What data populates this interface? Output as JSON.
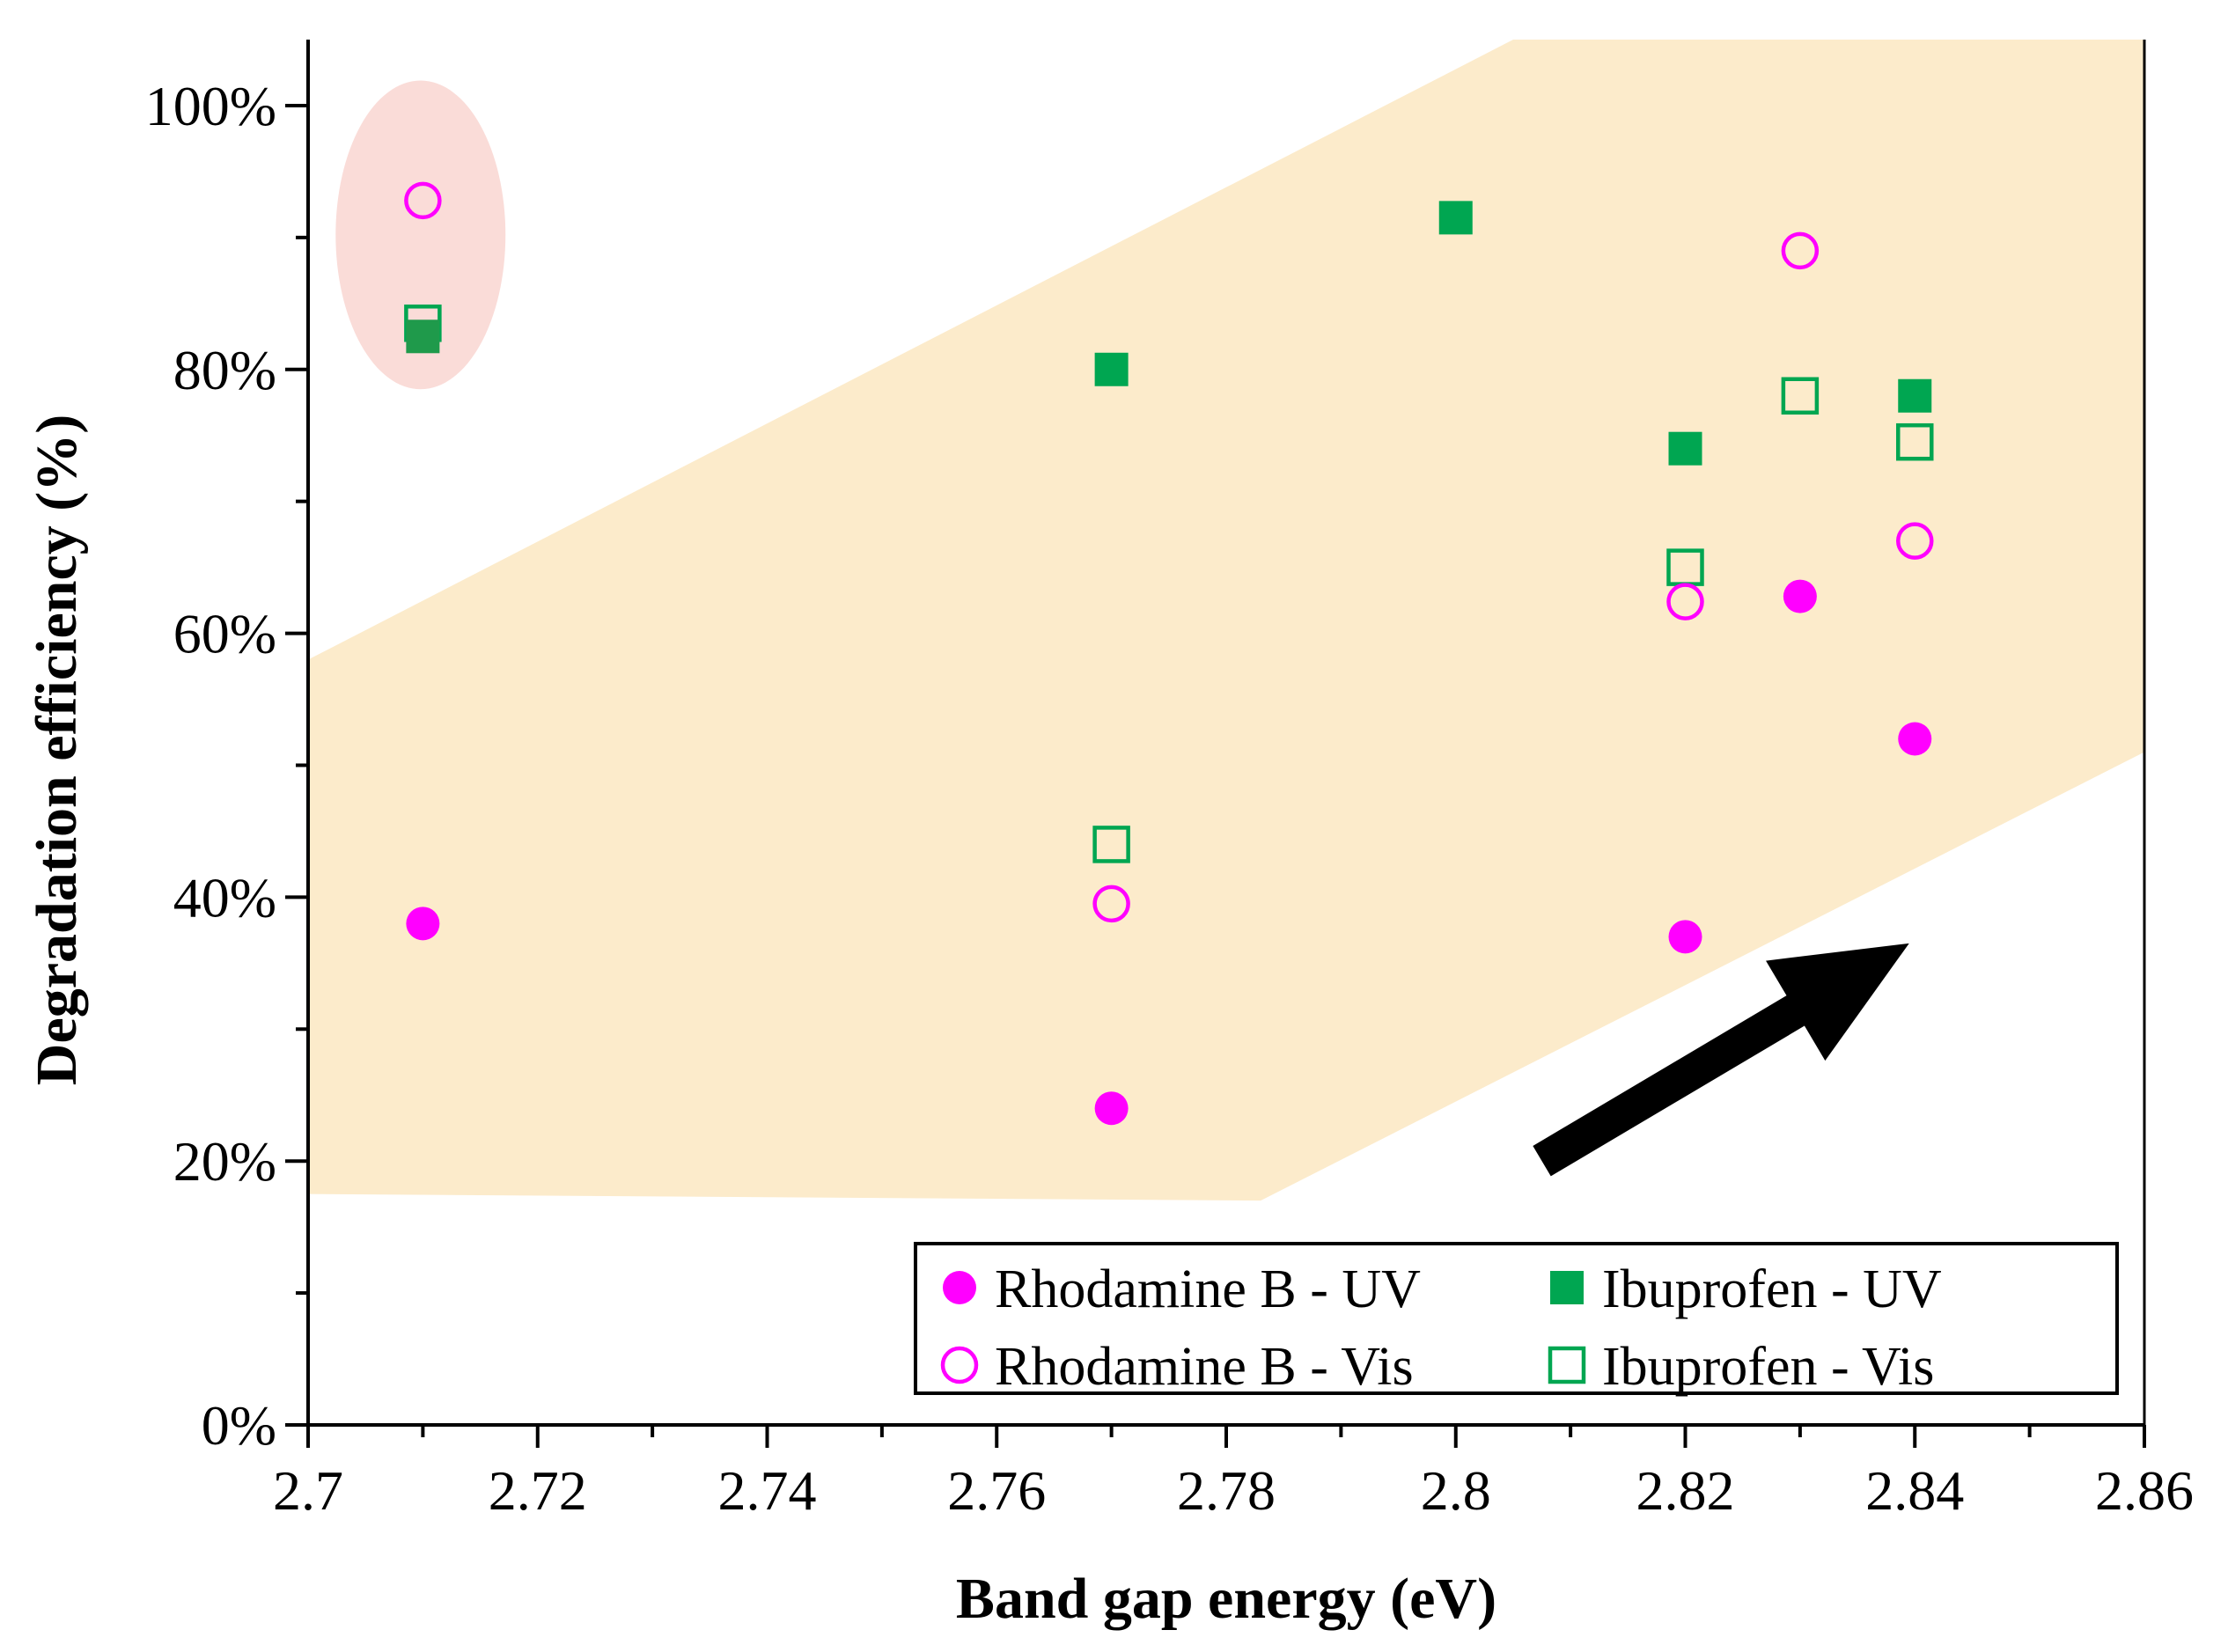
{
  "chart_data": {
    "type": "scatter",
    "title": "",
    "xlabel": "Band gap energy (eV)",
    "ylabel": "Degradation efficiency (%)",
    "xlim": [
      2.7,
      2.86
    ],
    "ylim": [
      0,
      105
    ],
    "x_ticks": [
      2.7,
      2.72,
      2.74,
      2.76,
      2.78,
      2.8,
      2.82,
      2.84,
      2.86
    ],
    "x_tick_labels": [
      "2.7",
      "2.72",
      "2.74",
      "2.76",
      "2.78",
      "2.8",
      "2.82",
      "2.84",
      "2.86"
    ],
    "y_ticks": [
      0,
      20,
      40,
      60,
      80,
      100
    ],
    "y_tick_labels": [
      "0%",
      "20%",
      "40%",
      "60%",
      "80%",
      "100%"
    ],
    "grid": false,
    "legend_position": "bottom-right",
    "series": [
      {
        "name": "Rhodamine B - UV",
        "marker": "filled-circle",
        "color": "#FF00FF",
        "points": [
          [
            2.71,
            38
          ],
          [
            2.77,
            24
          ],
          [
            2.82,
            37
          ],
          [
            2.83,
            62.8
          ],
          [
            2.84,
            52
          ]
        ]
      },
      {
        "name": "Rhodamine B - Vis",
        "marker": "open-circle",
        "color": "#FF00FF",
        "points": [
          [
            2.71,
            92.8
          ],
          [
            2.77,
            39.5
          ],
          [
            2.82,
            62.4
          ],
          [
            2.83,
            89
          ],
          [
            2.84,
            67
          ]
        ]
      },
      {
        "name": "Ibuprofen - UV",
        "marker": "filled-square",
        "color": "#00A651",
        "points": [
          [
            2.71,
            82.5
          ],
          [
            2.77,
            80
          ],
          [
            2.8,
            91.5
          ],
          [
            2.82,
            74
          ],
          [
            2.84,
            78
          ]
        ]
      },
      {
        "name": "Ibuprofen - Vis",
        "marker": "open-square",
        "color": "#00A651",
        "points": [
          [
            2.71,
            83.5
          ],
          [
            2.77,
            44
          ],
          [
            2.82,
            65
          ],
          [
            2.83,
            78
          ],
          [
            2.84,
            74.5
          ]
        ]
      }
    ],
    "annotations": {
      "trend_band": {
        "color": "#FCEBCB",
        "polygon": [
          [
            2.7,
            58
          ],
          [
            2.805,
            105
          ],
          [
            2.86,
            105
          ],
          [
            2.86,
            51
          ],
          [
            2.783,
            17
          ],
          [
            2.7,
            17.5
          ]
        ]
      },
      "highlight_ellipse": {
        "color": "#FADCD8",
        "center": [
          2.7098,
          90.2
        ],
        "radius": [
          0.0074,
          11.7
        ]
      },
      "arrow": {
        "color": "#000000",
        "from": [
          2.8075,
          20
        ],
        "to": [
          2.8395,
          36.5
        ],
        "meaning": "increasing trend"
      }
    }
  }
}
